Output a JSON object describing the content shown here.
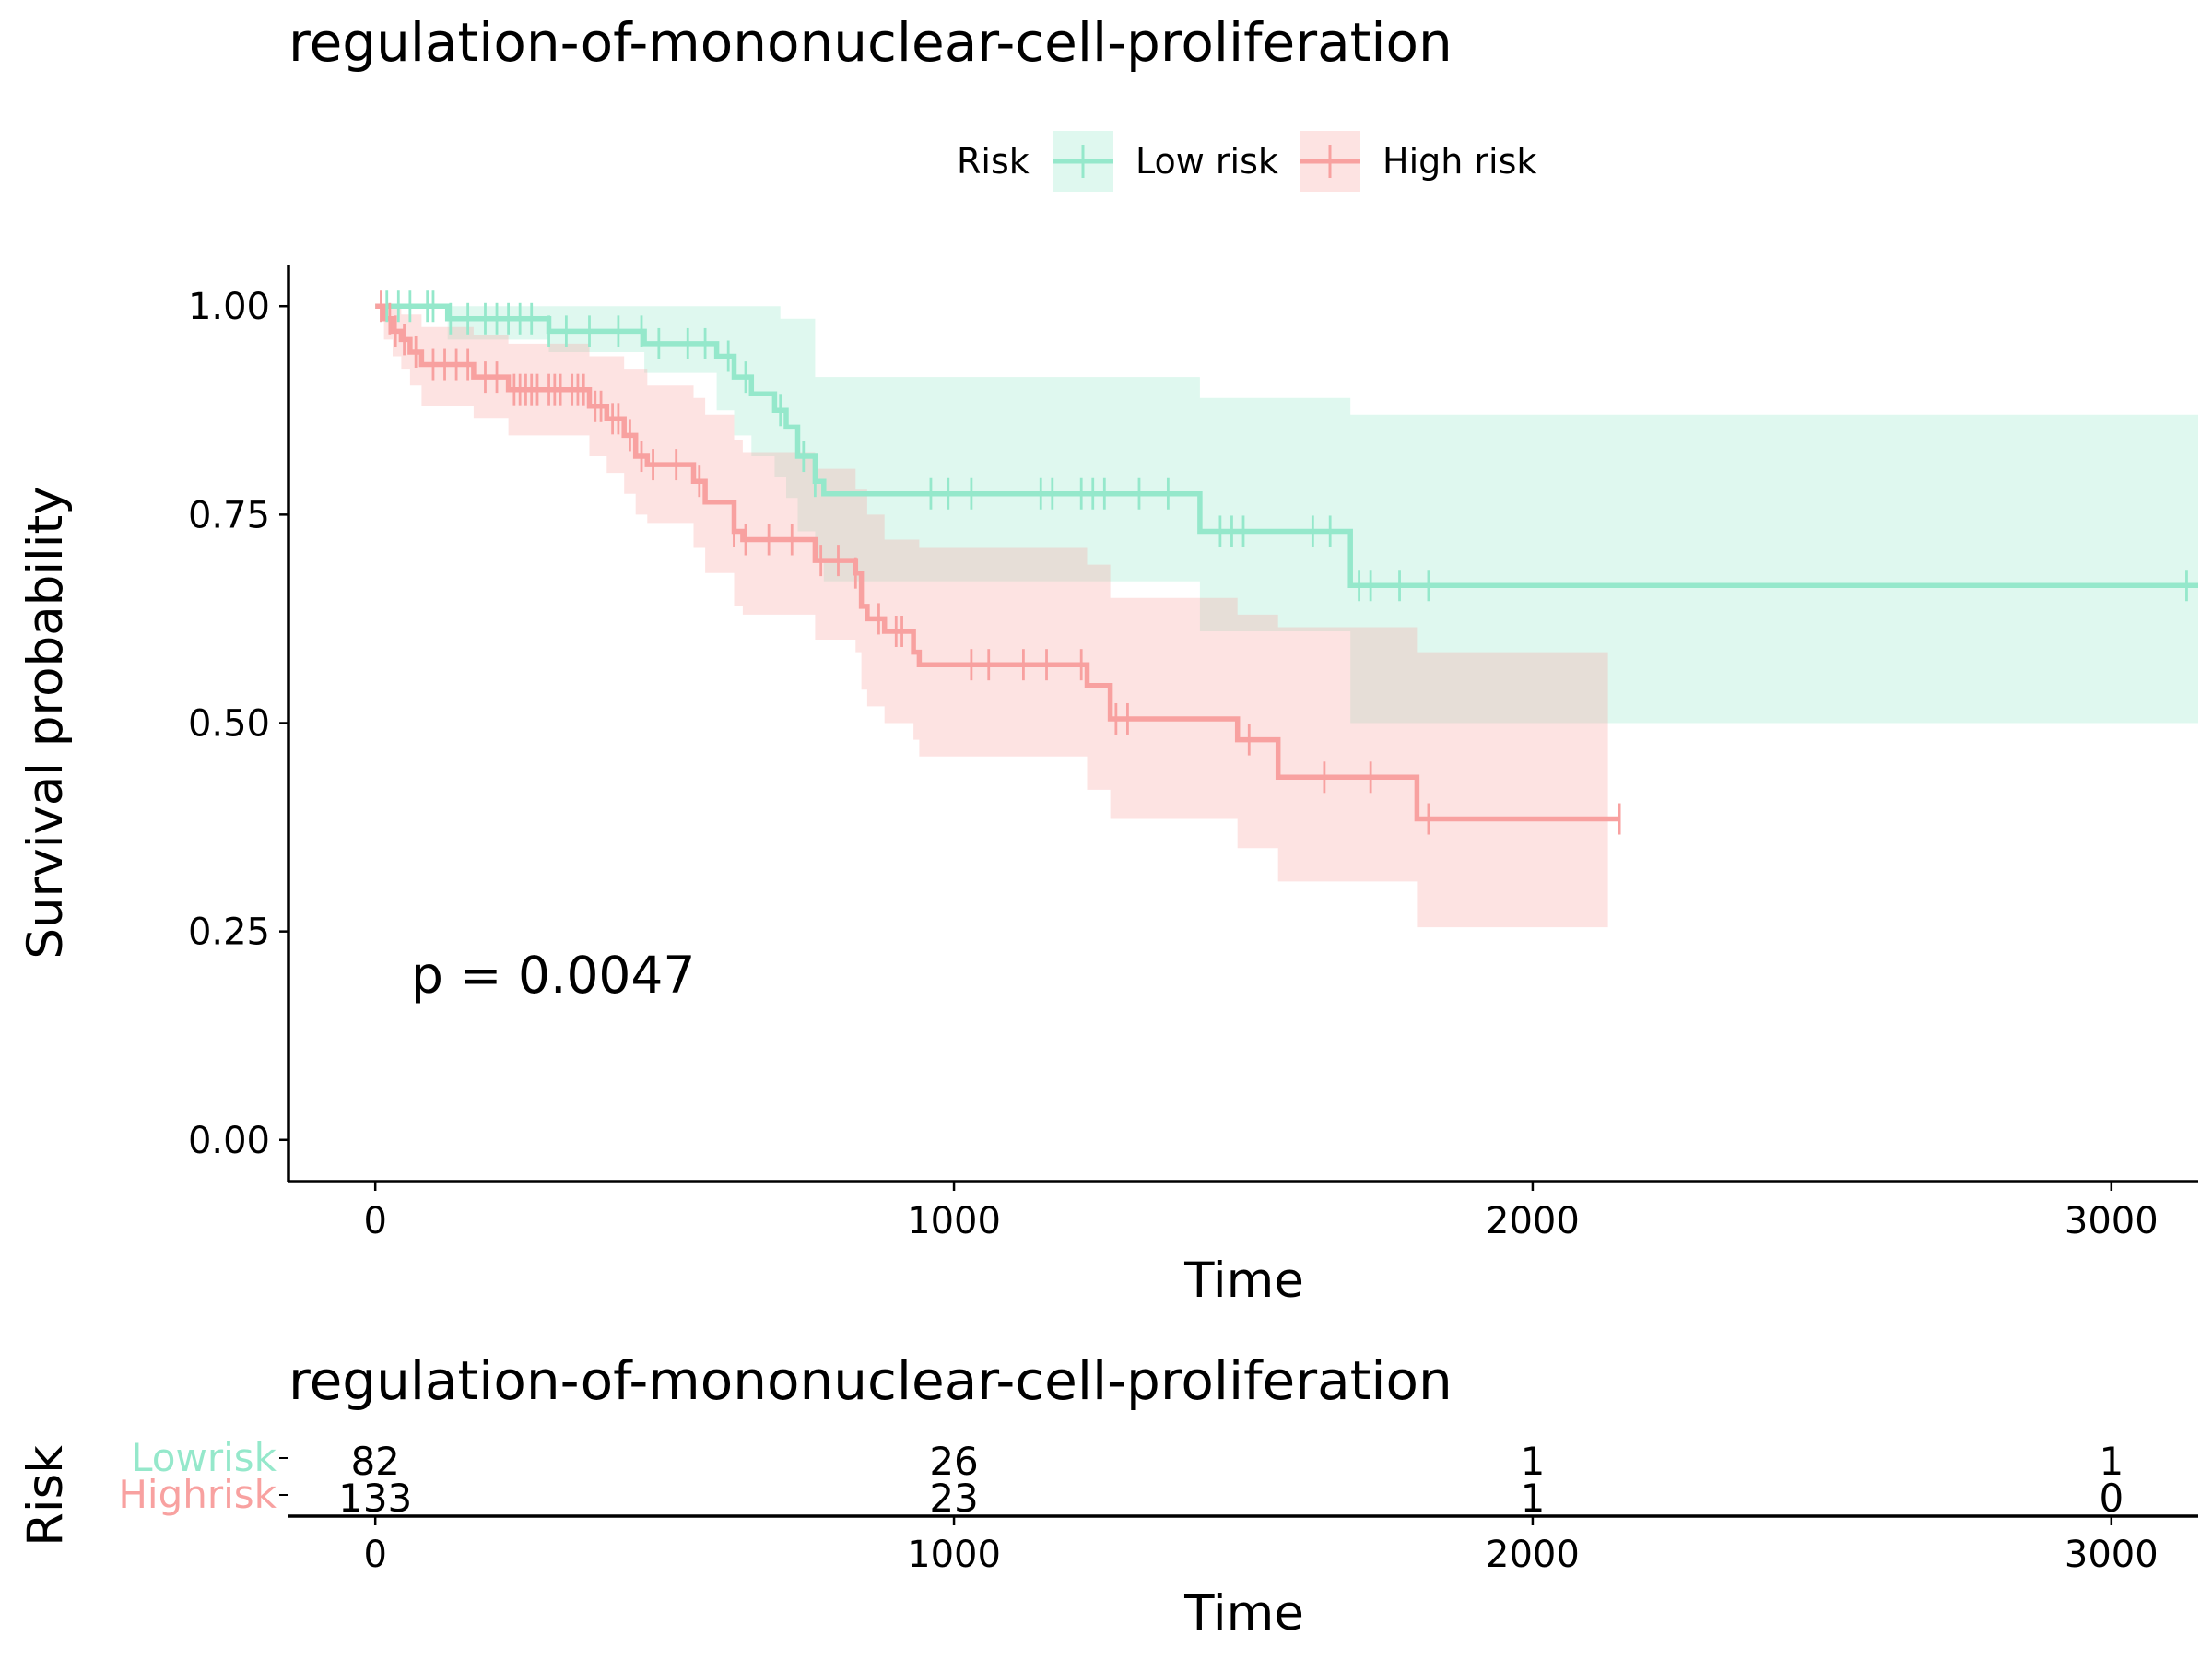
{
  "chart_data": {
    "type": "line",
    "subtype": "kaplan-meier survival curve",
    "title": "regulation-of-mononuclear-cell-proliferation",
    "xlabel": "Time",
    "ylabel": "Survival probability",
    "xlim": [
      -150,
      3150
    ],
    "ylim": [
      -0.05,
      1.05
    ],
    "x_ticks": [
      0,
      1000,
      2000,
      3000
    ],
    "y_ticks": [
      "0.00",
      "0.25",
      "0.50",
      "0.75",
      "1.00"
    ],
    "y_tick_values": [
      0,
      0.25,
      0.5,
      0.75,
      1.0
    ],
    "grid": false,
    "legend": {
      "title": "Risk",
      "placement": "top",
      "entries": [
        "Low risk",
        "High risk"
      ]
    },
    "annotation": "p = 0.0047",
    "series": [
      {
        "name": "Low risk",
        "color": "#95E8CB",
        "steps": [
          [
            0,
            1.0
          ],
          [
            125,
            0.985
          ],
          [
            300,
            0.97
          ],
          [
            465,
            0.955
          ],
          [
            590,
            0.94
          ],
          [
            620,
            0.915
          ],
          [
            650,
            0.895
          ],
          [
            690,
            0.875
          ],
          [
            710,
            0.855
          ],
          [
            730,
            0.82
          ],
          [
            760,
            0.79
          ],
          [
            775,
            0.775
          ],
          [
            1425,
            0.73
          ],
          [
            1685,
            0.665
          ],
          [
            3150,
            0.665
          ]
        ],
        "ci_lower": [
          [
            0,
            1.0
          ],
          [
            125,
            0.96
          ],
          [
            300,
            0.945
          ],
          [
            465,
            0.92
          ],
          [
            590,
            0.875
          ],
          [
            620,
            0.845
          ],
          [
            650,
            0.82
          ],
          [
            690,
            0.795
          ],
          [
            710,
            0.77
          ],
          [
            730,
            0.73
          ],
          [
            760,
            0.695
          ],
          [
            775,
            0.67
          ],
          [
            1425,
            0.61
          ],
          [
            1685,
            0.5
          ],
          [
            3150,
            0.5
          ]
        ],
        "ci_upper": [
          [
            0,
            1.0
          ],
          [
            600,
            1.0
          ],
          [
            700,
            0.985
          ],
          [
            760,
            0.915
          ],
          [
            1425,
            0.89
          ],
          [
            1685,
            0.87
          ],
          [
            3150,
            0.87
          ]
        ],
        "censor_times": [
          20,
          40,
          60,
          90,
          100,
          130,
          160,
          190,
          210,
          230,
          250,
          270,
          300,
          330,
          370,
          420,
          460,
          490,
          540,
          570,
          610,
          640,
          700,
          740,
          760,
          960,
          990,
          1030,
          1150,
          1170,
          1220,
          1240,
          1260,
          1320,
          1370,
          1460,
          1480,
          1500,
          1620,
          1650,
          1700,
          1720,
          1770,
          1820,
          3130
        ]
      },
      {
        "name": "High risk",
        "color": "#F8A1A0",
        "steps": [
          [
            0,
            1.0
          ],
          [
            15,
            0.985
          ],
          [
            30,
            0.97
          ],
          [
            45,
            0.96
          ],
          [
            60,
            0.945
          ],
          [
            80,
            0.93
          ],
          [
            170,
            0.915
          ],
          [
            230,
            0.9
          ],
          [
            370,
            0.88
          ],
          [
            400,
            0.865
          ],
          [
            430,
            0.845
          ],
          [
            450,
            0.82
          ],
          [
            470,
            0.81
          ],
          [
            550,
            0.79
          ],
          [
            570,
            0.765
          ],
          [
            620,
            0.73
          ],
          [
            635,
            0.72
          ],
          [
            760,
            0.695
          ],
          [
            830,
            0.68
          ],
          [
            840,
            0.64
          ],
          [
            850,
            0.625
          ],
          [
            880,
            0.61
          ],
          [
            930,
            0.585
          ],
          [
            940,
            0.57
          ],
          [
            1230,
            0.545
          ],
          [
            1270,
            0.505
          ],
          [
            1490,
            0.48
          ],
          [
            1560,
            0.435
          ],
          [
            1800,
            0.385
          ],
          [
            2150,
            0.385
          ]
        ],
        "ci_lower": [
          [
            0,
            1.0
          ],
          [
            15,
            0.96
          ],
          [
            30,
            0.94
          ],
          [
            45,
            0.925
          ],
          [
            60,
            0.905
          ],
          [
            80,
            0.88
          ],
          [
            170,
            0.865
          ],
          [
            230,
            0.845
          ],
          [
            370,
            0.82
          ],
          [
            400,
            0.8
          ],
          [
            430,
            0.775
          ],
          [
            450,
            0.75
          ],
          [
            470,
            0.74
          ],
          [
            550,
            0.71
          ],
          [
            570,
            0.68
          ],
          [
            620,
            0.64
          ],
          [
            635,
            0.63
          ],
          [
            760,
            0.6
          ],
          [
            830,
            0.585
          ],
          [
            840,
            0.54
          ],
          [
            850,
            0.52
          ],
          [
            880,
            0.5
          ],
          [
            930,
            0.48
          ],
          [
            940,
            0.46
          ],
          [
            1230,
            0.42
          ],
          [
            1270,
            0.385
          ],
          [
            1490,
            0.35
          ],
          [
            1560,
            0.31
          ],
          [
            1800,
            0.255
          ],
          [
            2130,
            0.255
          ]
        ],
        "ci_upper": [
          [
            0,
            1.0
          ],
          [
            45,
            0.99
          ],
          [
            80,
            0.975
          ],
          [
            170,
            0.965
          ],
          [
            230,
            0.955
          ],
          [
            370,
            0.94
          ],
          [
            430,
            0.925
          ],
          [
            470,
            0.905
          ],
          [
            550,
            0.89
          ],
          [
            570,
            0.87
          ],
          [
            620,
            0.84
          ],
          [
            635,
            0.825
          ],
          [
            760,
            0.805
          ],
          [
            830,
            0.78
          ],
          [
            850,
            0.75
          ],
          [
            880,
            0.72
          ],
          [
            940,
            0.71
          ],
          [
            1230,
            0.69
          ],
          [
            1270,
            0.65
          ],
          [
            1490,
            0.63
          ],
          [
            1560,
            0.615
          ],
          [
            1800,
            0.585
          ],
          [
            2130,
            0.585
          ]
        ],
        "censor_times": [
          10,
          25,
          35,
          50,
          70,
          100,
          120,
          140,
          160,
          190,
          210,
          240,
          250,
          260,
          270,
          280,
          300,
          310,
          320,
          340,
          350,
          360,
          380,
          390,
          410,
          420,
          440,
          460,
          480,
          520,
          560,
          620,
          640,
          680,
          720,
          770,
          800,
          830,
          870,
          900,
          910,
          1030,
          1060,
          1120,
          1160,
          1220,
          1280,
          1300,
          1510,
          1640,
          1720,
          1820,
          2150
        ]
      }
    ]
  },
  "risk_table": {
    "title": "regulation-of-mononuclear-cell-proliferation",
    "ylabel": "Risk",
    "xlabel": "Time",
    "x_ticks": [
      0,
      1000,
      2000,
      3000
    ],
    "rows": [
      {
        "label": "Lowrisk",
        "color": "#95E8CB",
        "counts": [
          "82",
          "26",
          "1",
          "1"
        ]
      },
      {
        "label": "Highrisk",
        "color": "#F8A1A0",
        "counts": [
          "133",
          "23",
          "1",
          "0"
        ]
      }
    ]
  }
}
